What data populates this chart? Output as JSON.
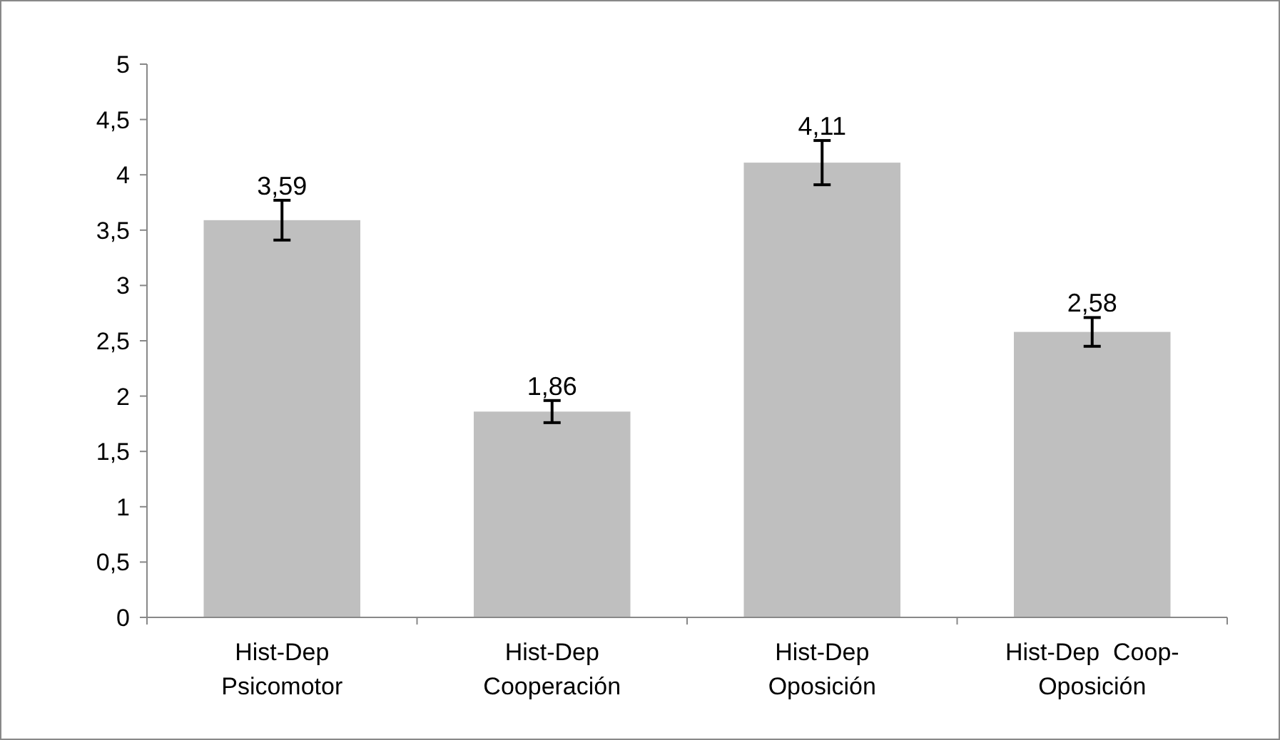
{
  "chart_data": {
    "type": "bar",
    "categories": [
      "Hist-Dep\nPsicomotor",
      "Hist-Dep\nCooperación",
      "Hist-Dep\nOposición",
      "Hist-Dep  Coop-\nOposición"
    ],
    "values": [
      3.59,
      1.86,
      4.11,
      2.58
    ],
    "value_labels": [
      "3,59",
      "1,86",
      "4,11",
      "2,58"
    ],
    "errors": [
      0.18,
      0.1,
      0.2,
      0.13
    ],
    "color": "#bfbfbf",
    "ylim": [
      0,
      5
    ],
    "yticks": [
      0,
      {
        "value": 0.5,
        "label": "0,5"
      },
      1,
      {
        "value": 1.5,
        "label": "1,5"
      },
      2,
      {
        "value": 2.5,
        "label": "2,5"
      },
      3,
      {
        "value": 3.5,
        "label": "3,5"
      },
      4,
      {
        "value": 4.5,
        "label": "4,5"
      },
      5
    ],
    "grid": false
  }
}
